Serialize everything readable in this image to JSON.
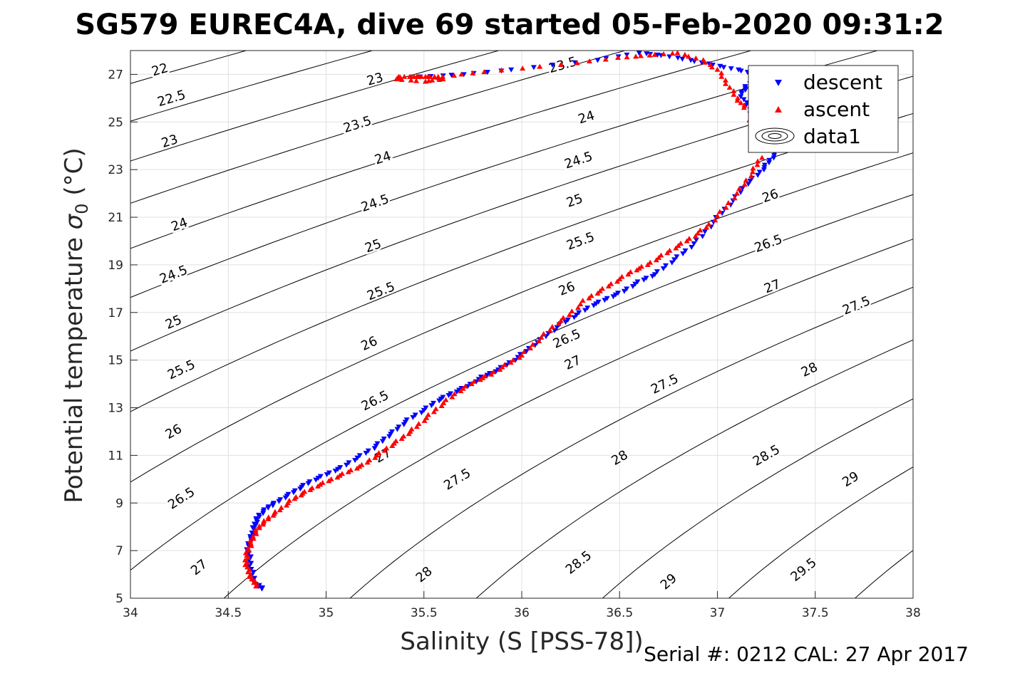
{
  "title": "SG579 EUREC4A, dive 69 started 05-Feb-2020 09:31:2",
  "footer": "Serial #: 0212  CAL: 27 Apr 2017",
  "colors": {
    "descent": "#0000ff",
    "ascent": "#ff0000",
    "contour": "#000000",
    "grid": "#e0e0e0"
  },
  "chart_data": {
    "type": "scatter",
    "xlabel": "Salinity (S [PSS-78])",
    "ylabel_main": "Potential temperature ",
    "ylabel_sigma": "σ",
    "ylabel_sub": "0",
    "ylabel_unit": " (°C)",
    "xlim": [
      34,
      38
    ],
    "ylim": [
      5,
      28
    ],
    "xticks": [
      "34",
      "34.5",
      "35",
      "35.5",
      "36",
      "36.5",
      "37",
      "37.5",
      "38"
    ],
    "yticks": [
      "5",
      "7",
      "9",
      "11",
      "13",
      "15",
      "17",
      "19",
      "21",
      "23",
      "25",
      "27"
    ],
    "grid": true,
    "legend": {
      "position": "top-right",
      "entries": [
        "descent",
        "ascent",
        "data1"
      ]
    },
    "contour_labels": [
      {
        "t": "22",
        "s": 34.15,
        "T": 27.2
      },
      {
        "t": "22.5",
        "s": 34.21,
        "T": 26.0
      },
      {
        "t": "23",
        "s": 34.2,
        "T": 24.2
      },
      {
        "t": "24",
        "s": 34.25,
        "T": 20.7
      },
      {
        "t": "24.5",
        "s": 34.22,
        "T": 18.6
      },
      {
        "t": "25",
        "s": 34.22,
        "T": 16.6
      },
      {
        "t": "25.5",
        "s": 34.26,
        "T": 14.6
      },
      {
        "t": "26",
        "s": 34.22,
        "T": 12.0
      },
      {
        "t": "26.5",
        "s": 34.26,
        "T": 9.2
      },
      {
        "t": "27",
        "s": 34.35,
        "T": 6.3
      },
      {
        "t": "23",
        "s": 35.25,
        "T": 26.8
      },
      {
        "t": "23.5",
        "s": 35.16,
        "T": 24.9
      },
      {
        "t": "24",
        "s": 35.29,
        "T": 23.5
      },
      {
        "t": "24.5",
        "s": 35.25,
        "T": 21.6
      },
      {
        "t": "25",
        "s": 35.24,
        "T": 19.8
      },
      {
        "t": "25.5",
        "s": 35.28,
        "T": 17.9
      },
      {
        "t": "26",
        "s": 35.22,
        "T": 15.7
      },
      {
        "t": "26.5",
        "s": 35.25,
        "T": 13.3
      },
      {
        "t": "27",
        "s": 35.29,
        "T": 11.0
      },
      {
        "t": "23.5",
        "s": 36.21,
        "T": 27.4
      },
      {
        "t": "24",
        "s": 36.33,
        "T": 25.2
      },
      {
        "t": "24.5",
        "s": 36.29,
        "T": 23.4
      },
      {
        "t": "25",
        "s": 36.27,
        "T": 21.7
      },
      {
        "t": "25.5",
        "s": 36.3,
        "T": 20.0
      },
      {
        "t": "26",
        "s": 36.23,
        "T": 18.0
      },
      {
        "t": "26.5",
        "s": 36.23,
        "T": 15.9
      },
      {
        "t": "27",
        "s": 36.26,
        "T": 14.9
      },
      {
        "t": "27.5",
        "s": 35.67,
        "T": 10.0
      },
      {
        "t": "28",
        "s": 35.5,
        "T": 6.0
      },
      {
        "t": "27.5",
        "s": 36.73,
        "T": 14.0
      },
      {
        "t": "28",
        "s": 36.5,
        "T": 10.9
      },
      {
        "t": "28.5",
        "s": 36.29,
        "T": 6.5
      },
      {
        "t": "29",
        "s": 36.75,
        "T": 5.7
      },
      {
        "t": "26",
        "s": 37.27,
        "T": 21.9
      },
      {
        "t": "26.5",
        "s": 37.26,
        "T": 19.9
      },
      {
        "t": "27",
        "s": 37.28,
        "T": 18.1
      },
      {
        "t": "27.5",
        "s": 37.71,
        "T": 17.3
      },
      {
        "t": "28",
        "s": 37.47,
        "T": 14.6
      },
      {
        "t": "28.5",
        "s": 37.25,
        "T": 11.0
      },
      {
        "t": "29",
        "s": 37.68,
        "T": 10.0
      },
      {
        "t": "29.5",
        "s": 37.44,
        "T": 6.2
      }
    ],
    "series": [
      {
        "name": "descent",
        "marker": "triangle-down",
        "x": [
          34.68,
          34.64,
          34.62,
          34.61,
          34.6,
          34.62,
          34.63,
          34.64,
          34.66,
          34.7,
          34.74,
          34.8,
          34.86,
          34.92,
          35.0,
          35.08,
          35.16,
          35.24,
          35.3,
          35.36,
          35.42,
          35.5,
          35.57,
          35.64,
          35.72,
          35.8,
          35.88,
          35.96,
          36.04,
          36.12,
          36.2,
          36.28,
          36.36,
          36.44,
          36.52,
          36.6,
          36.68,
          36.76,
          36.84,
          36.92,
          37.0,
          37.08,
          37.15,
          37.22,
          37.26,
          37.3,
          37.28,
          37.2,
          37.15,
          37.12,
          37.15,
          37.2,
          37.1,
          36.98,
          36.86,
          36.72,
          36.6,
          36.38,
          35.95,
          35.7,
          35.48
        ],
        "y": [
          5.4,
          5.6,
          6.1,
          6.6,
          7.2,
          7.6,
          7.9,
          8.2,
          8.5,
          8.8,
          9.0,
          9.3,
          9.6,
          9.9,
          10.2,
          10.5,
          10.9,
          11.3,
          11.7,
          12.1,
          12.5,
          12.9,
          13.3,
          13.6,
          13.9,
          14.3,
          14.6,
          15.0,
          15.5,
          16.0,
          16.5,
          16.9,
          17.3,
          17.6,
          17.9,
          18.3,
          18.6,
          19.1,
          19.6,
          20.2,
          21.0,
          21.7,
          22.4,
          22.9,
          23.3,
          23.7,
          24.5,
          25.0,
          25.7,
          26.2,
          26.5,
          27.0,
          27.2,
          27.4,
          27.6,
          27.8,
          27.9,
          27.6,
          27.2,
          27.0,
          26.9
        ]
      },
      {
        "name": "ascent",
        "marker": "triangle-up",
        "x": [
          34.65,
          34.62,
          34.6,
          34.59,
          34.6,
          34.62,
          34.64,
          34.67,
          34.71,
          34.76,
          34.82,
          34.88,
          34.95,
          35.03,
          35.11,
          35.19,
          35.26,
          35.33,
          35.4,
          35.46,
          35.53,
          35.6,
          35.68,
          35.76,
          35.84,
          35.92,
          36.0,
          36.08,
          36.16,
          36.24,
          36.32,
          36.4,
          36.48,
          36.56,
          36.64,
          36.72,
          36.8,
          36.88,
          36.96,
          37.04,
          37.12,
          37.18,
          37.22,
          37.14,
          37.1,
          37.05,
          37.0,
          36.92,
          36.8,
          36.65,
          36.5,
          36.2,
          35.8,
          35.6,
          35.46,
          35.38,
          35.36,
          35.5,
          35.6,
          35.55,
          35.45
        ],
        "y": [
          5.5,
          5.8,
          6.2,
          6.6,
          7.0,
          7.4,
          7.8,
          8.1,
          8.4,
          8.7,
          9.1,
          9.4,
          9.7,
          10.0,
          10.3,
          10.6,
          11.0,
          11.4,
          11.8,
          12.2,
          12.7,
          13.2,
          13.7,
          14.1,
          14.4,
          14.8,
          15.2,
          15.8,
          16.4,
          16.9,
          17.5,
          17.9,
          18.3,
          18.7,
          19.0,
          19.4,
          19.8,
          20.2,
          20.7,
          21.4,
          22.2,
          22.9,
          23.5,
          25.6,
          26.0,
          26.6,
          27.2,
          27.6,
          27.9,
          27.8,
          27.7,
          27.4,
          27.1,
          26.9,
          26.9,
          26.9,
          26.8,
          26.7,
          26.8,
          26.9,
          26.9
        ]
      }
    ]
  }
}
